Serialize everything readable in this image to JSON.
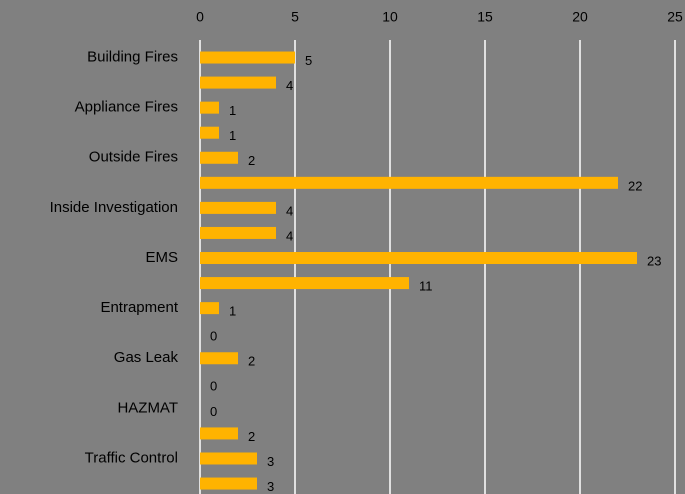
{
  "chart_data": {
    "type": "barh",
    "categories": [
      "Building Fires",
      null,
      "Appliance Fires",
      null,
      "Outside Fires",
      null,
      "Inside Investigation",
      null,
      "EMS",
      null,
      "Entrapment",
      null,
      "Gas Leak",
      null,
      "HAZMAT",
      null,
      "Traffic Control",
      null
    ],
    "values": [
      5,
      4,
      1,
      1,
      2,
      22,
      4,
      4,
      23,
      11,
      1,
      0,
      2,
      0,
      0,
      2,
      3,
      3
    ],
    "color": "#ffb300",
    "xlim": [
      0,
      25
    ],
    "xticks": [
      0,
      5,
      10,
      15,
      20,
      25
    ],
    "grid": true
  }
}
